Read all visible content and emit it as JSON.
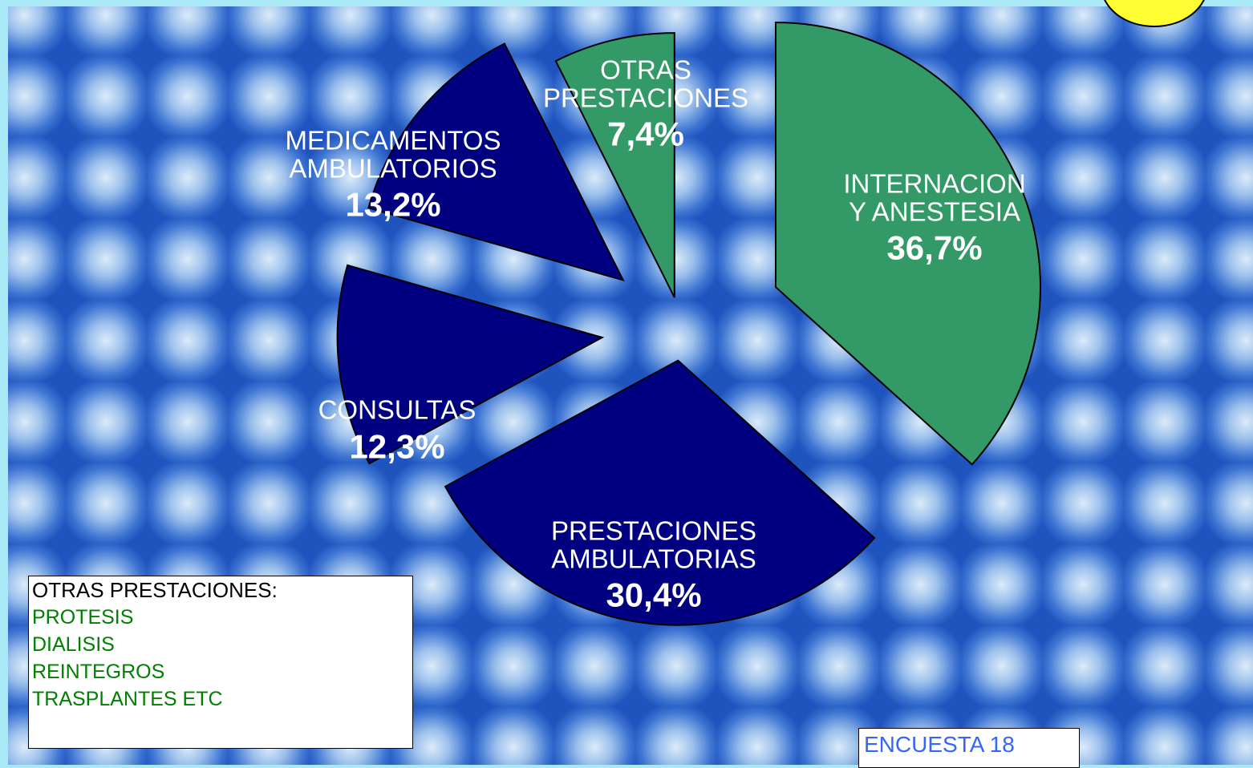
{
  "chart_data": {
    "type": "pie",
    "categories": [
      "INTERNACION\nY ANESTESIA",
      "PRESTACIONES\nAMBULATORIAS",
      "CONSULTAS",
      "MEDICAMENTOS\nAMBULATORIOS",
      "OTRAS\nPRESTACIONES"
    ],
    "values": [
      36.7,
      30.4,
      12.3,
      13.2,
      7.4
    ],
    "value_labels": [
      "36,7%",
      "30,4%",
      "12,3%",
      "13,2%",
      "7,4%"
    ],
    "colors": [
      "#339966",
      "#000080",
      "#000080",
      "#000080",
      "#339966"
    ]
  },
  "note_box": {
    "title": "OTRAS PRESTACIONES:",
    "items": [
      "PROTESIS",
      "DIALISIS",
      "REINTEGROS",
      "TRASPLANTES ETC"
    ]
  },
  "footer": "ENCUESTA 18"
}
